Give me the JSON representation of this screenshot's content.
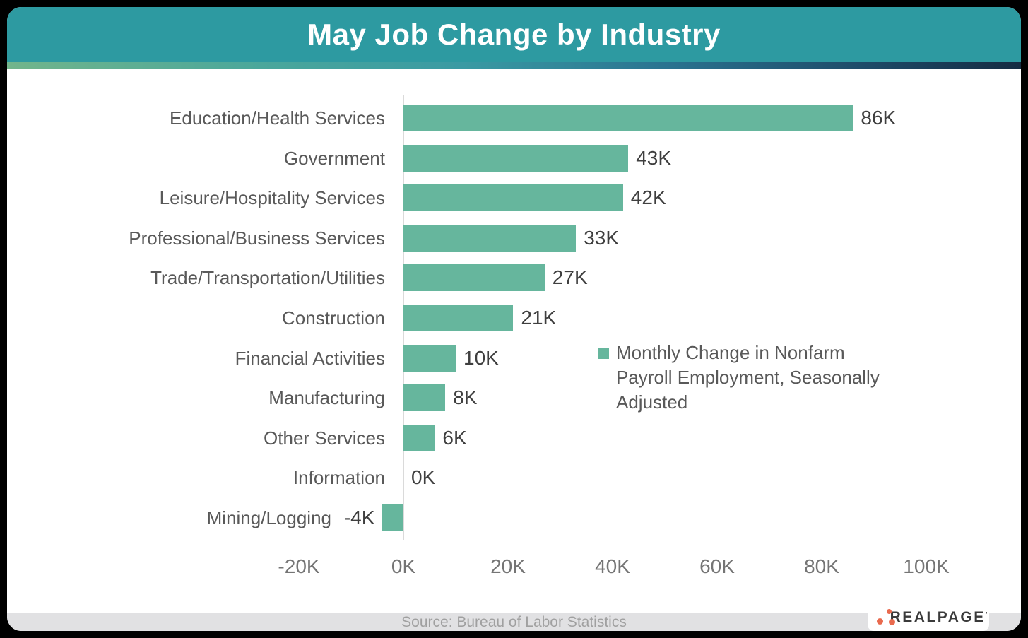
{
  "header": {
    "title": "May Job Change by Industry"
  },
  "colors": {
    "header_teal": "#2d9aa1",
    "bar_green": "#66b69d",
    "accent_gradient": [
      "#72b58b",
      "#3a9aa3",
      "#152c42"
    ],
    "logo_orange": "#e96a4e"
  },
  "chart_data": {
    "type": "bar",
    "orientation": "horizontal",
    "title": "May Job Change by Industry",
    "categories": [
      "Education/Health Services",
      "Government",
      "Leisure/Hospitality Services",
      "Professional/Business Services",
      "Trade/Transportation/Utilities",
      "Construction",
      "Financial Activities",
      "Manufacturing",
      "Other Services",
      "Information",
      "Mining/Logging"
    ],
    "values_k": [
      86,
      43,
      42,
      33,
      27,
      21,
      10,
      8,
      6,
      0,
      -4
    ],
    "value_labels": [
      "86K",
      "43K",
      "42K",
      "33K",
      "27K",
      "21K",
      "10K",
      "8K",
      "6K",
      "0K",
      "-4K"
    ],
    "x_ticks": [
      "-20K",
      "0K",
      "20K",
      "40K",
      "60K",
      "80K",
      "100K"
    ],
    "x_tick_values_k": [
      -20,
      0,
      20,
      40,
      60,
      80,
      100
    ],
    "xlim_k": [
      -20,
      100
    ],
    "grid": "off",
    "bar_color": "#66b69d",
    "legend": {
      "position": "middle-right",
      "lines": [
        "Monthly Change in Nonfarm",
        "Payroll Employment, Seasonally",
        "Adjusted"
      ]
    }
  },
  "legend": {
    "lines": [
      "Monthly Change in Nonfarm",
      "Payroll Employment, Seasonally",
      "Adjusted"
    ]
  },
  "footer": {
    "source": "Source: Bureau of Labor Statistics"
  },
  "logo": {
    "text": "REALPAGE",
    "mark": "’"
  }
}
